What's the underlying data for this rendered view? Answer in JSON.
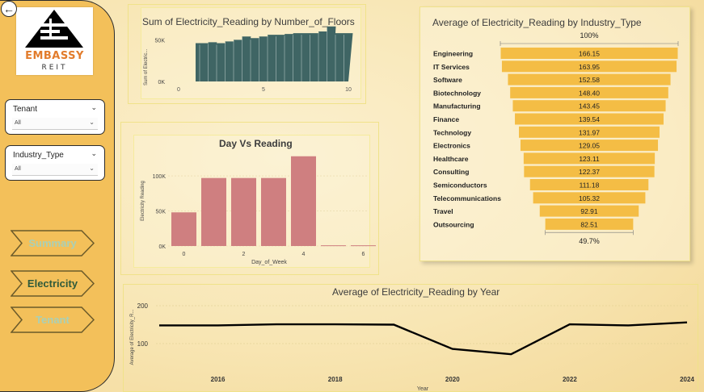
{
  "sidebar": {
    "back_icon": "back-arrow-icon",
    "logo": {
      "name": "EMBASSY",
      "sub": "REIT"
    },
    "slicers": [
      {
        "title": "Tenant",
        "value": "All"
      },
      {
        "title": "Industry_Type",
        "value": "All"
      }
    ],
    "nav": [
      {
        "label": "Summary",
        "text_color": "#a8d0b8"
      },
      {
        "label": "Electricity",
        "text_color": "#2f5a3a"
      },
      {
        "label": "Tenant",
        "text_color": "#a8d0b8"
      }
    ]
  },
  "colors": {
    "sidebar": "#f3c05a",
    "bar_floors": "#3f6564",
    "bar_day": "#cf7f80",
    "funnel": "#f4bd45",
    "line": "#000000"
  },
  "chart_data": [
    {
      "id": "floors",
      "type": "area",
      "title": "Sum of Electricity_Reading by Number_of_Floors",
      "xlabel": "",
      "ylabel": "Sum of Electric...",
      "x_ticks": [
        "0",
        "5",
        "10"
      ],
      "y_ticks": [
        "0K",
        "50K"
      ],
      "xlim": [
        0,
        10
      ],
      "ylim": [
        0,
        60000
      ],
      "x": [
        1,
        1.5,
        2,
        2.5,
        3,
        3.5,
        4,
        4.5,
        5,
        5.5,
        6,
        6.5,
        7,
        7.5,
        8,
        8.5,
        9,
        9.5,
        10
      ],
      "values": [
        46000,
        46000,
        47000,
        46000,
        48000,
        50000,
        54000,
        52000,
        54000,
        56000,
        56000,
        57000,
        58000,
        58000,
        58000,
        60000,
        66000,
        58000,
        58000
      ]
    },
    {
      "id": "day",
      "type": "bar",
      "title": "Day Vs Reading",
      "xlabel": "Day_of_Week",
      "ylabel": "Electricity Reading",
      "x_ticks": [
        "0",
        "2",
        "4",
        "6"
      ],
      "y_ticks": [
        "0K",
        "50K",
        "100K"
      ],
      "ylim": [
        0,
        130000
      ],
      "categories": [
        0,
        1,
        2,
        3,
        4,
        5,
        6
      ],
      "values": [
        48000,
        97000,
        97000,
        97000,
        128000,
        1000,
        1000
      ]
    },
    {
      "id": "industry",
      "type": "bar",
      "title": "Average of Electricity_Reading by Industry_Type",
      "top_label": "100%",
      "bottom_label": "49.7%",
      "categories": [
        "Engineering",
        "IT Services",
        "Software",
        "Biotechnology",
        "Manufacturing",
        "Finance",
        "Technology",
        "Electronics",
        "Healthcare",
        "Consulting",
        "Semiconductors",
        "Telecommunications",
        "Travel",
        "Outsourcing"
      ],
      "values": [
        166.15,
        163.95,
        152.58,
        148.4,
        143.45,
        139.54,
        131.97,
        129.05,
        123.11,
        122.37,
        111.18,
        105.32,
        92.91,
        82.51
      ],
      "value_labels": [
        "166.15",
        "163.95",
        "152.58",
        "148.40",
        "143.45",
        "139.54",
        "131.97",
        "129.05",
        "123.11",
        "122.37",
        "111.18",
        "105.32",
        "92.91",
        "82.51"
      ]
    },
    {
      "id": "year",
      "type": "line",
      "title": "Average of Electricity_Reading by Year",
      "xlabel": "Year",
      "ylabel": "Average of Electricity_R...",
      "x_ticks": [
        "2016",
        "2018",
        "2020",
        "2022",
        "2024"
      ],
      "y_ticks": [
        "100",
        "200"
      ],
      "xlim": [
        2015,
        2024
      ],
      "ylim": [
        0,
        200
      ],
      "x": [
        2015,
        2016,
        2017,
        2018,
        2019,
        2020,
        2021,
        2022,
        2023,
        2024
      ],
      "values": [
        148,
        148,
        151,
        151,
        150,
        86,
        72,
        151,
        148,
        156
      ]
    }
  ]
}
